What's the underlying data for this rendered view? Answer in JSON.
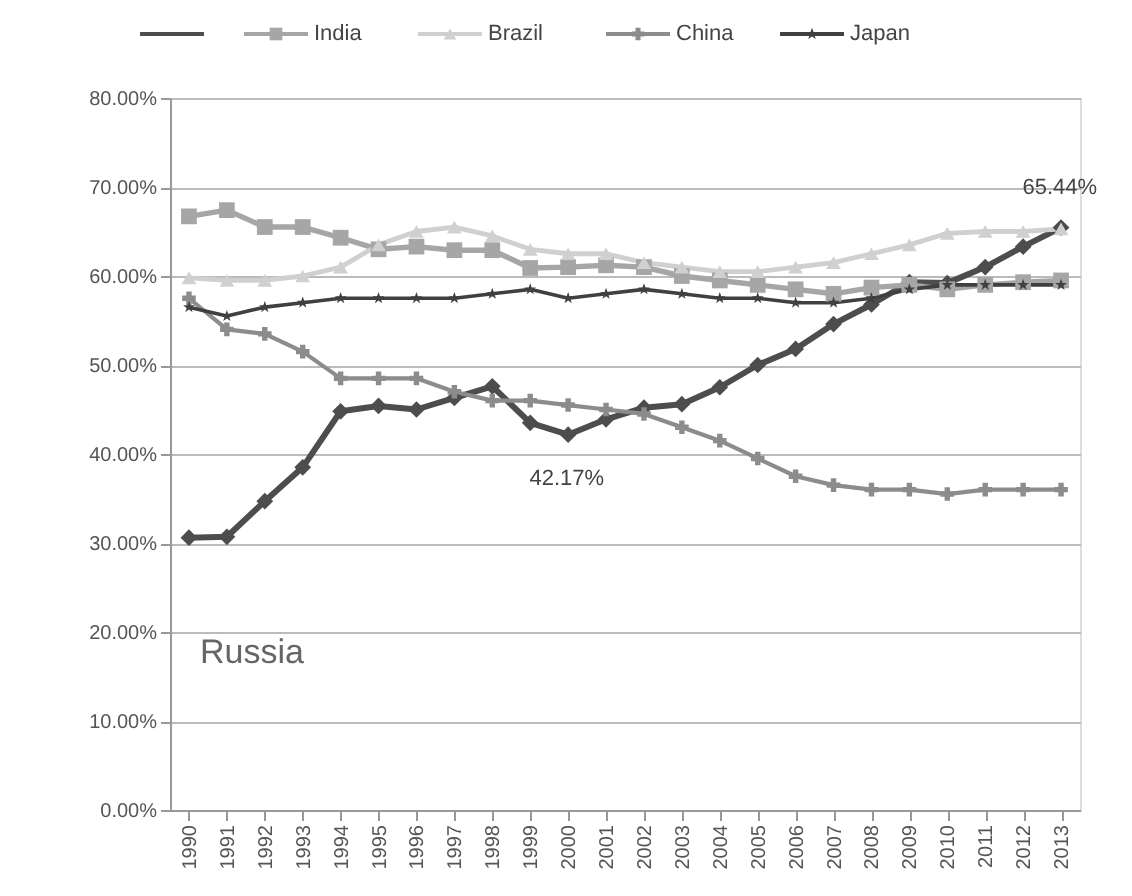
{
  "chart_data": {
    "type": "line",
    "categories": [
      "1990",
      "1991",
      "1992",
      "1993",
      "1994",
      "1995",
      "1996",
      "1997",
      "1998",
      "1999",
      "2000",
      "2001",
      "2002",
      "2003",
      "2004",
      "2005",
      "2006",
      "2007",
      "2008",
      "2009",
      "2010",
      "2011",
      "2012",
      "2013"
    ],
    "series": [
      {
        "color": "#4d4d4d",
        "marker": "diamond",
        "values": [
          30.6,
          30.7,
          34.7,
          38.5,
          44.8,
          45.4,
          45.0,
          46.3,
          47.6,
          43.5,
          42.17,
          43.9,
          45.2,
          45.6,
          47.5,
          50.0,
          51.8,
          54.6,
          56.8,
          59.3,
          59.2,
          61.0,
          63.3,
          65.44
        ],
        "value_labels": [
          null,
          null,
          null,
          null,
          null,
          null,
          null,
          null,
          null,
          null,
          "42.17%",
          null,
          null,
          null,
          null,
          null,
          null,
          null,
          null,
          null,
          null,
          null,
          null,
          "65.44%"
        ]
      },
      {
        "name": "India",
        "color": "#a6a6a6",
        "marker": "square",
        "values": [
          66.7,
          67.4,
          65.5,
          65.5,
          64.3,
          63.0,
          63.3,
          62.9,
          62.9,
          60.9,
          61.0,
          61.2,
          61.0,
          60.0,
          59.5,
          59.0,
          58.5,
          58.0,
          58.7,
          59.0,
          58.5,
          59.0,
          59.3,
          59.5
        ]
      },
      {
        "name": "Brazil",
        "color": "#d0d0d0",
        "marker": "triangle",
        "values": [
          59.8,
          59.5,
          59.5,
          60.0,
          61.0,
          63.5,
          65.0,
          65.5,
          64.5,
          63.0,
          62.5,
          62.5,
          61.5,
          61.0,
          60.5,
          60.5,
          61.0,
          61.5,
          62.5,
          63.5,
          64.8,
          65.0,
          65.0,
          65.3
        ]
      },
      {
        "name": "China",
        "color": "#8c8c8c",
        "marker": "cross",
        "values": [
          57.5,
          54.0,
          53.5,
          51.5,
          48.5,
          48.5,
          48.5,
          47.0,
          46.0,
          46.0,
          45.5,
          45.0,
          44.5,
          43.0,
          41.5,
          39.5,
          37.5,
          36.5,
          36.0,
          36.0,
          35.5,
          36.0,
          36.0,
          36.0
        ]
      },
      {
        "name": "Japan",
        "color": "#404040",
        "marker": "star",
        "values": [
          56.5,
          55.5,
          56.5,
          57.0,
          57.5,
          57.5,
          57.5,
          57.5,
          58.0,
          58.5,
          57.5,
          58.0,
          58.5,
          58.0,
          57.5,
          57.5,
          57.0,
          57.0,
          57.5,
          58.5,
          59.0,
          59.0,
          59.0,
          59.0
        ]
      }
    ],
    "ylim": [
      0,
      80
    ],
    "yticks": [
      {
        "value": 0,
        "label": "0.00%"
      },
      {
        "value": 10,
        "label": "10.00%"
      },
      {
        "value": 20,
        "label": "20.00%"
      },
      {
        "value": 30,
        "label": "30.00%"
      },
      {
        "value": 40,
        "label": "40.00%"
      },
      {
        "value": 50,
        "label": "50.00%"
      },
      {
        "value": 60,
        "label": "60.00%"
      },
      {
        "value": 70,
        "label": "70.00%"
      },
      {
        "value": 80,
        "label": "80.00%"
      }
    ],
    "annotations": [
      "Russia"
    ],
    "grid": "y",
    "legend": "top",
    "line_style": "solid"
  }
}
